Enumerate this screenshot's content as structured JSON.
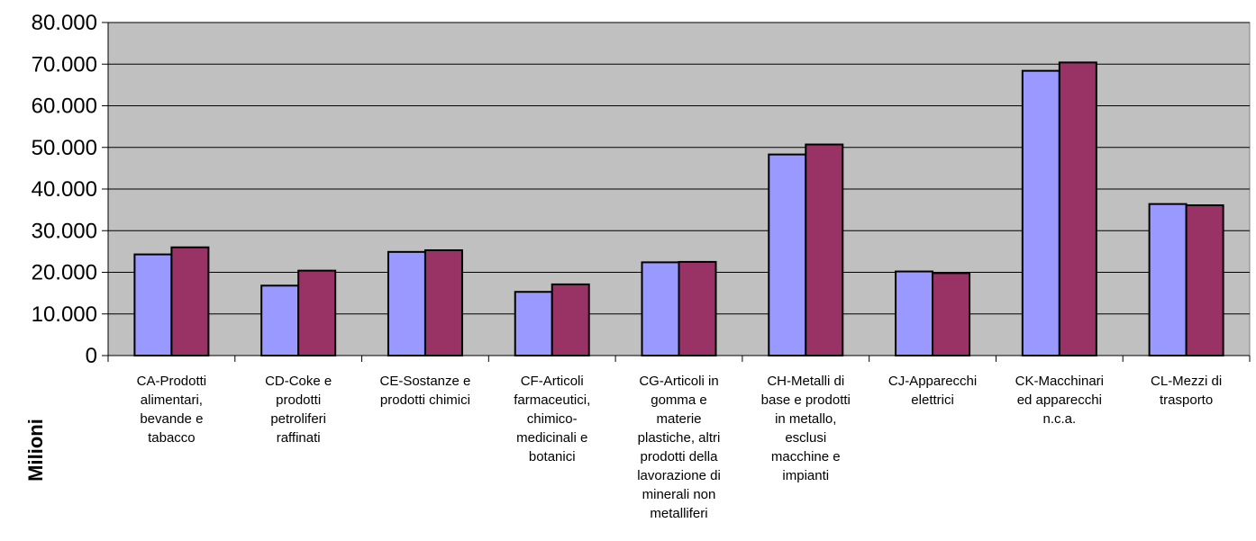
{
  "chart_data": {
    "type": "bar",
    "title": "",
    "xlabel": "",
    "ylabel": "Milioni",
    "ylim": [
      0,
      80000
    ],
    "yticks": [
      "0",
      "10.000",
      "20.000",
      "30.000",
      "40.000",
      "50.000",
      "60.000",
      "70.000",
      "80.000"
    ],
    "grid": true,
    "legend": "none",
    "categories": [
      "CA-Prodotti alimentari, bevande e tabacco",
      "CD-Coke e prodotti petroliferi raffinati",
      "CE-Sostanze e prodotti chimici",
      "CF-Articoli farmaceutici, chimico-medicinali e botanici",
      "CG-Articoli in gomma e materie plastiche, altri prodotti della lavorazione di minerali non metalliferi",
      "CH-Metalli di base e prodotti in metallo, esclusi macchine e impianti",
      "CJ-Apparecchi elettrici",
      "CK-Macchinari ed apparecchi n.c.a.",
      "CL-Mezzi di trasporto"
    ],
    "category_lines": [
      [
        "CA-Prodotti",
        "alimentari,",
        "bevande e",
        "tabacco"
      ],
      [
        "CD-Coke e",
        "prodotti",
        "petroliferi",
        "raffinati"
      ],
      [
        "CE-Sostanze e",
        "prodotti chimici"
      ],
      [
        "CF-Articoli",
        "farmaceutici,",
        "chimico-",
        "medicinali e",
        "botanici"
      ],
      [
        "CG-Articoli in",
        "gomma e",
        "materie",
        "plastiche, altri",
        "prodotti della",
        "lavorazione di",
        "minerali non",
        "metalliferi"
      ],
      [
        "CH-Metalli di",
        "base e prodotti",
        "in metallo,",
        "esclusi",
        "macchine e",
        "impianti"
      ],
      [
        "CJ-Apparecchi",
        "elettrici"
      ],
      [
        "CK-Macchinari",
        "ed apparecchi",
        "n.c.a."
      ],
      [
        "CL-Mezzi di",
        "trasporto"
      ]
    ],
    "series": [
      {
        "color": "#9999ff",
        "values": [
          24300,
          16800,
          24900,
          15300,
          22400,
          48300,
          20200,
          68400,
          36400
        ]
      },
      {
        "color": "#993366",
        "values": [
          26000,
          20400,
          25300,
          17100,
          22500,
          50700,
          19800,
          70400,
          36100
        ]
      }
    ],
    "plot_background": "#c0c0c0"
  }
}
